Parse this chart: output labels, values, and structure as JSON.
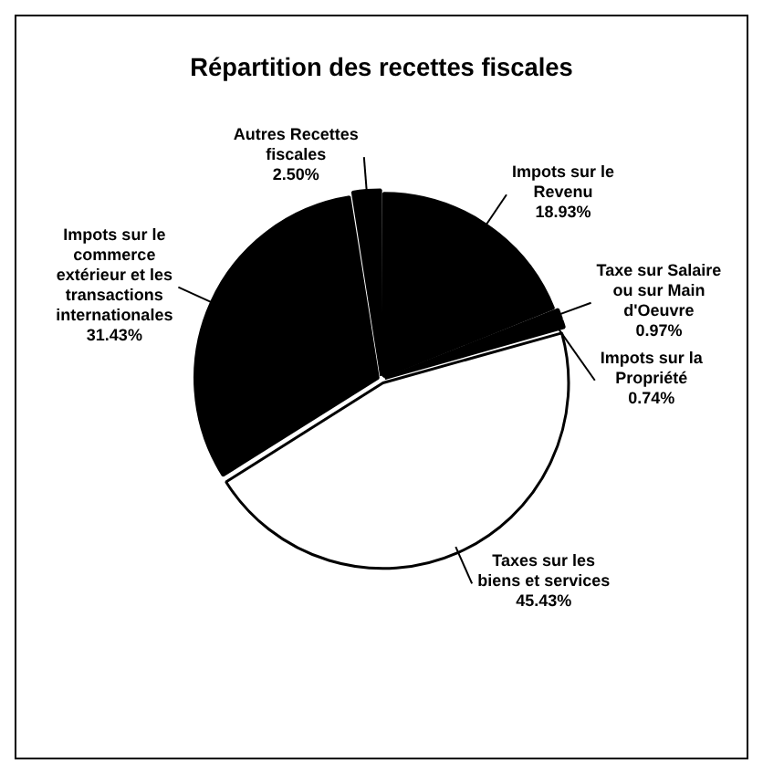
{
  "chart_data": {
    "type": "pie",
    "title": "Répartition des recettes fiscales",
    "categories": [
      "Impots sur le Revenu",
      "Taxe sur Salaire ou sur Main d'Oeuvre",
      "Impots sur la Propriété",
      "Taxes sur les biens et services",
      "Impots sur le commerce extérieur et les transactions internationales",
      "Autres Recettes fiscales"
    ],
    "values": [
      18.93,
      0.97,
      0.74,
      45.43,
      31.43,
      2.5
    ],
    "value_labels": [
      "18.93%",
      "0.97%",
      "0.74%",
      "45.43%",
      "31.43%",
      "2.50%"
    ],
    "colors": [
      "#000000",
      "#000000",
      "#000000",
      "#ffffff",
      "#000000",
      "#000000"
    ],
    "legend": false
  }
}
